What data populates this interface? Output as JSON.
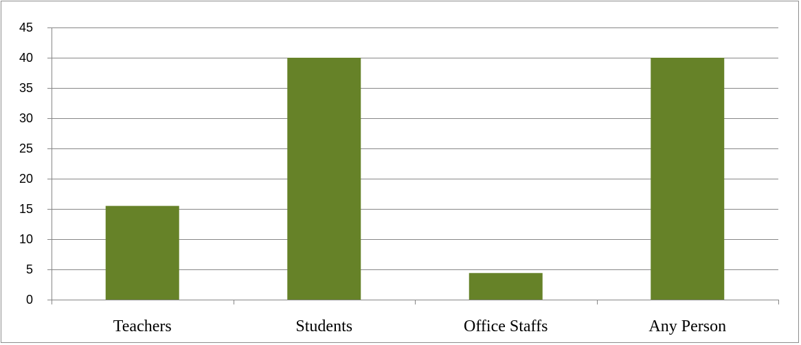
{
  "chart_data": {
    "type": "bar",
    "categories": [
      "Teachers",
      "Students",
      "Office Staffs",
      "Any Person"
    ],
    "values": [
      15.5,
      40,
      4.4,
      40
    ],
    "title": "",
    "xlabel": "",
    "ylabel": "",
    "ylim": [
      0,
      45
    ],
    "yticks": [
      0,
      5,
      10,
      15,
      20,
      25,
      30,
      35,
      40,
      45
    ],
    "grid": true,
    "legend": "none",
    "colors": {
      "bar": "#668228",
      "gridline": "#868686",
      "text": "#000000"
    }
  }
}
